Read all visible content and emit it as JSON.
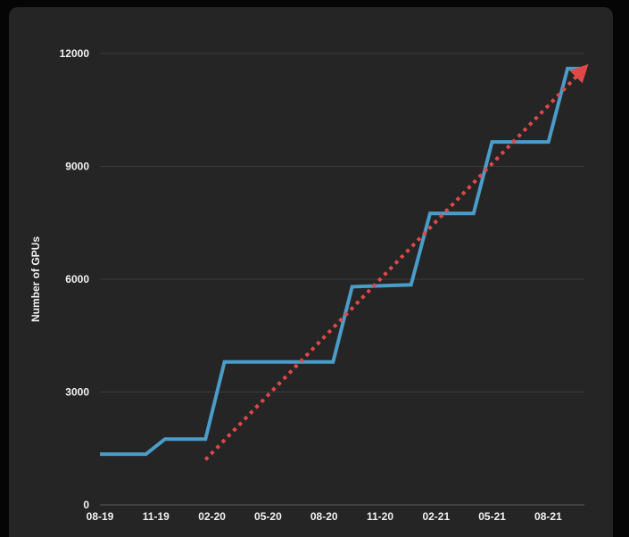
{
  "chart_data": {
    "type": "line",
    "title": "",
    "xlabel": "",
    "ylabel": "Number of GPUs",
    "x_tick_labels": [
      "08-19",
      "11-19",
      "02-20",
      "05-20",
      "08-20",
      "11-20",
      "02-21",
      "05-21",
      "08-21"
    ],
    "y_tick_labels": [
      "0",
      "3000",
      "6000",
      "9000",
      "12000"
    ],
    "y_ticks": [
      0,
      3000,
      6000,
      9000,
      12000
    ],
    "ylim": [
      0,
      12000
    ],
    "grid": true,
    "series": [
      {
        "name": "",
        "color": "#4a9cc9",
        "points": [
          {
            "x": "2019-08-01",
            "y": 1350
          },
          {
            "x": "2019-10-15",
            "y": 1350
          },
          {
            "x": "2019-11-15",
            "y": 1750
          },
          {
            "x": "2020-01-20",
            "y": 1750
          },
          {
            "x": "2020-02-20",
            "y": 3800
          },
          {
            "x": "2020-08-15",
            "y": 3800
          },
          {
            "x": "2020-09-15",
            "y": 5800
          },
          {
            "x": "2020-12-20",
            "y": 5850
          },
          {
            "x": "2021-01-20",
            "y": 7750
          },
          {
            "x": "2021-04-01",
            "y": 7750
          },
          {
            "x": "2021-05-01",
            "y": 9650
          },
          {
            "x": "2021-08-01",
            "y": 9650
          },
          {
            "x": "2021-09-01",
            "y": 11600
          },
          {
            "x": "2021-10-01",
            "y": 11600
          }
        ]
      }
    ],
    "trend_line": {
      "style": "dotted-arrow",
      "color": "#e04848",
      "start": {
        "x": "2020-01-20",
        "y": 1200
      },
      "end": {
        "x": "2021-10-01",
        "y": 11650
      }
    }
  }
}
